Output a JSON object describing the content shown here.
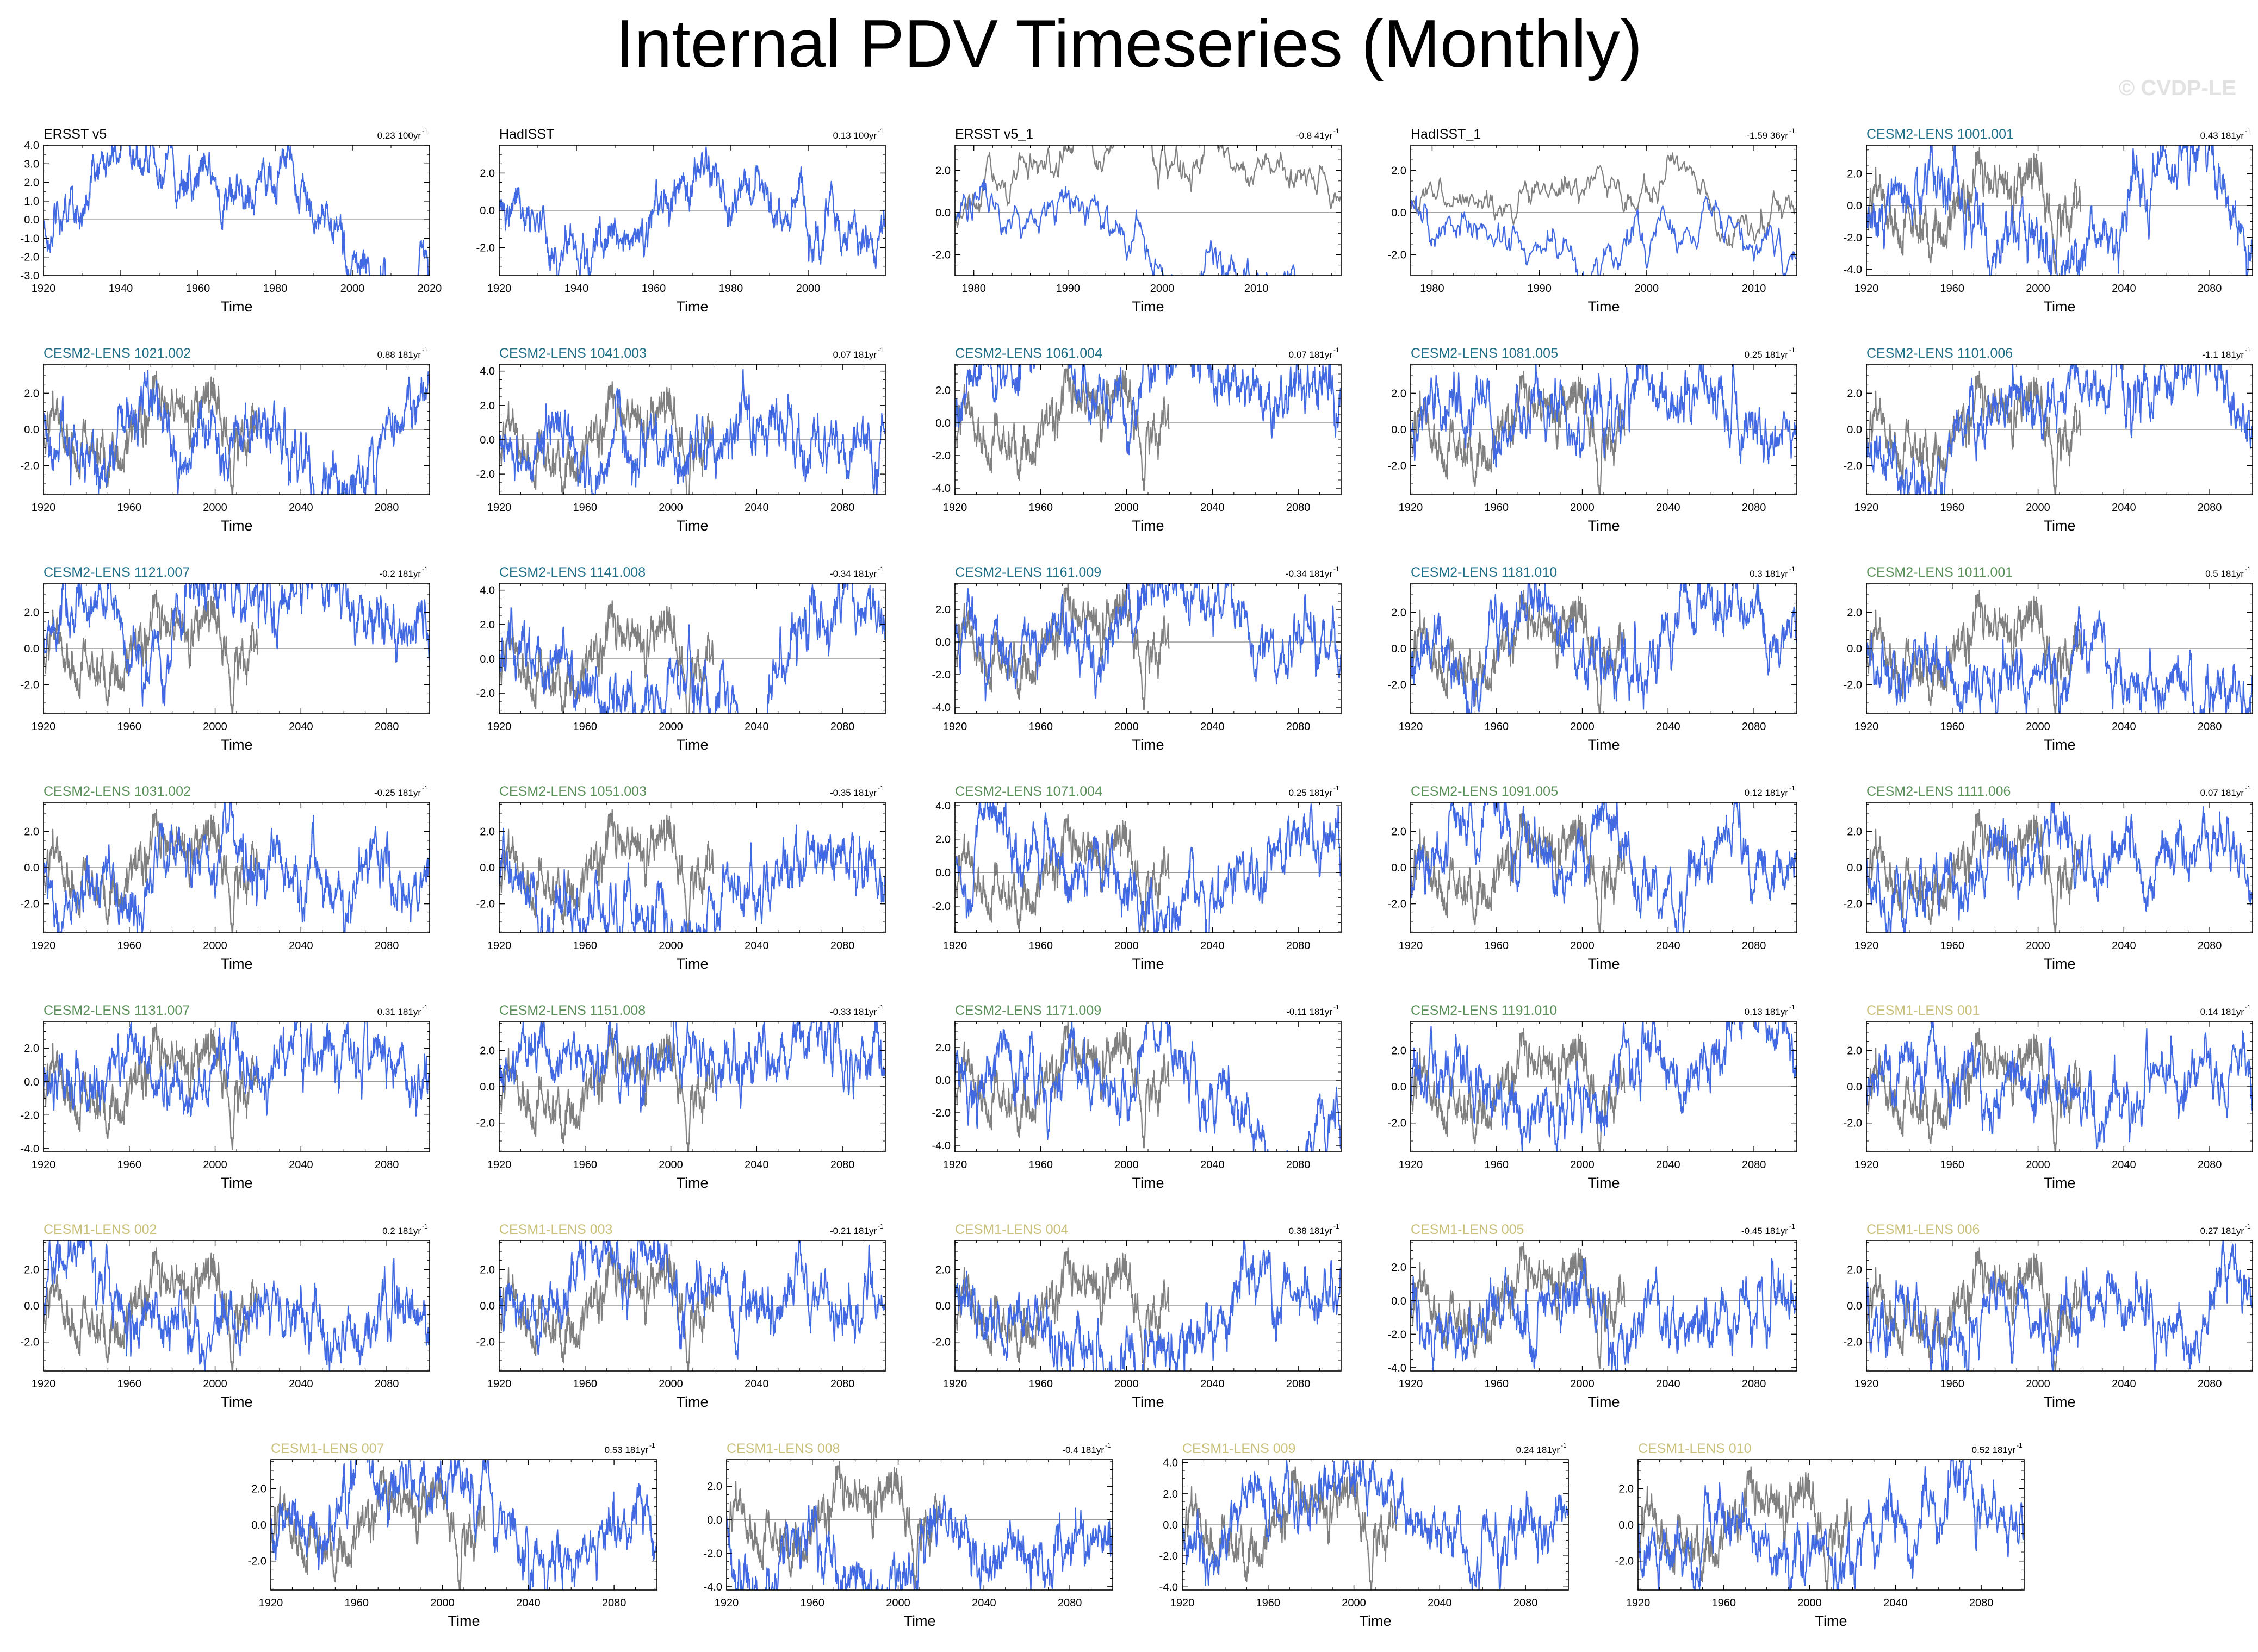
{
  "title": "Internal PDV Timeseries (Monthly)",
  "watermark": "© CVDP-LE",
  "colors": {
    "obs_title": "#000000",
    "cesm2_cmip6_title": "#1f6f88",
    "cesm2_smbb_title": "#5a8f5a",
    "cesm1_title": "#c9c07a",
    "member_line": "#4169e1",
    "obs_overlay_line": "#808080",
    "zero_line": "#999999"
  },
  "chart_data": [
    {
      "type": "line",
      "name": "ERSST v5",
      "trend": "0.23 100yr",
      "group": "obs",
      "xlim": [
        1920,
        2020
      ],
      "xticks": [
        "1920",
        "1940",
        "1960",
        "1980",
        "2000",
        "2020"
      ],
      "ylim": [
        -3.0,
        4.0
      ],
      "yticks": [
        "4.0",
        "3.0",
        "2.0",
        "1.0",
        "0.0",
        "-1.0",
        "-2.0",
        "-3.0"
      ],
      "xlabel": "Time"
    },
    {
      "type": "line",
      "name": "HadISST",
      "trend": "0.13 100yr",
      "group": "obs",
      "xlim": [
        1920,
        2020
      ],
      "xticks": [
        "1920",
        "1940",
        "1960",
        "1980",
        "2000"
      ],
      "ylim": [
        -3.5,
        3.5
      ],
      "yticks": [
        "2.0",
        "0.0",
        "-2.0"
      ],
      "xlabel": "Time"
    },
    {
      "type": "line",
      "name": "ERSST v5_1",
      "trend": "-0.8 41yr",
      "group": "obs",
      "xlim": [
        1978,
        2019
      ],
      "xticks": [
        "1980",
        "1990",
        "2000",
        "2010"
      ],
      "ylim": [
        -3.0,
        3.2
      ],
      "yticks": [
        "2.0",
        "0.0",
        "-2.0"
      ],
      "xlabel": "Time"
    },
    {
      "type": "line",
      "name": "HadISST_1",
      "trend": "-1.59 36yr",
      "group": "obs",
      "xlim": [
        1978,
        2014
      ],
      "xticks": [
        "1980",
        "1990",
        "2000",
        "2010"
      ],
      "ylim": [
        -3.0,
        3.2
      ],
      "yticks": [
        "2.0",
        "0.0",
        "-2.0"
      ],
      "xlabel": "Time"
    },
    {
      "type": "line",
      "name": "CESM2-LENS 1001.001",
      "trend": "0.43 181yr",
      "group": "cesm2_cmip6",
      "xlim": [
        1920,
        2100
      ],
      "xticks": [
        "1920",
        "1960",
        "2000",
        "2040",
        "2080"
      ],
      "ylim": [
        -4.4,
        3.8
      ],
      "yticks": [
        "2.0",
        "0.0",
        "-2.0",
        "-4.0"
      ],
      "xlabel": "Time"
    },
    {
      "type": "line",
      "name": "CESM2-LENS 1021.002",
      "trend": "0.88 181yr",
      "group": "cesm2_cmip6",
      "xlim": [
        1920,
        2100
      ],
      "xticks": [
        "1920",
        "1960",
        "2000",
        "2040",
        "2080"
      ],
      "ylim": [
        -3.6,
        3.6
      ],
      "yticks": [
        "2.0",
        "0.0",
        "-2.0"
      ],
      "xlabel": "Time"
    },
    {
      "type": "line",
      "name": "CESM2-LENS 1041.003",
      "trend": "0.07 181yr",
      "group": "cesm2_cmip6",
      "xlim": [
        1920,
        2100
      ],
      "xticks": [
        "1920",
        "1960",
        "2000",
        "2040",
        "2080"
      ],
      "ylim": [
        -3.2,
        4.4
      ],
      "yticks": [
        "4.0",
        "2.0",
        "0.0",
        "-2.0"
      ],
      "xlabel": "Time"
    },
    {
      "type": "line",
      "name": "CESM2-LENS 1061.004",
      "trend": "0.07 181yr",
      "group": "cesm2_cmip6",
      "xlim": [
        1920,
        2100
      ],
      "xticks": [
        "1920",
        "1960",
        "2000",
        "2040",
        "2080"
      ],
      "ylim": [
        -4.4,
        3.6
      ],
      "yticks": [
        "2.0",
        "0.0",
        "-2.0",
        "-4.0"
      ],
      "xlabel": "Time"
    },
    {
      "type": "line",
      "name": "CESM2-LENS 1081.005",
      "trend": "0.25 181yr",
      "group": "cesm2_cmip6",
      "xlim": [
        1920,
        2100
      ],
      "xticks": [
        "1920",
        "1960",
        "2000",
        "2040",
        "2080"
      ],
      "ylim": [
        -3.6,
        3.6
      ],
      "yticks": [
        "2.0",
        "0.0",
        "-2.0"
      ],
      "xlabel": "Time"
    },
    {
      "type": "line",
      "name": "CESM2-LENS 1101.006",
      "trend": "-1.1 181yr",
      "group": "cesm2_cmip6",
      "xlim": [
        1920,
        2100
      ],
      "xticks": [
        "1920",
        "1960",
        "2000",
        "2040",
        "2080"
      ],
      "ylim": [
        -3.6,
        3.6
      ],
      "yticks": [
        "2.0",
        "0.0",
        "-2.0"
      ],
      "xlabel": "Time"
    },
    {
      "type": "line",
      "name": "CESM2-LENS 1121.007",
      "trend": "-0.2 181yr",
      "group": "cesm2_cmip6",
      "xlim": [
        1920,
        2100
      ],
      "xticks": [
        "1920",
        "1960",
        "2000",
        "2040",
        "2080"
      ],
      "ylim": [
        -3.6,
        3.6
      ],
      "yticks": [
        "2.0",
        "0.0",
        "-2.0"
      ],
      "xlabel": "Time"
    },
    {
      "type": "line",
      "name": "CESM2-LENS 1141.008",
      "trend": "-0.34 181yr",
      "group": "cesm2_cmip6",
      "xlim": [
        1920,
        2100
      ],
      "xticks": [
        "1920",
        "1960",
        "2000",
        "2040",
        "2080"
      ],
      "ylim": [
        -3.2,
        4.4
      ],
      "yticks": [
        "4.0",
        "2.0",
        "0.0",
        "-2.0"
      ],
      "xlabel": "Time"
    },
    {
      "type": "line",
      "name": "CESM2-LENS 1161.009",
      "trend": "-0.34 181yr",
      "group": "cesm2_cmip6",
      "xlim": [
        1920,
        2100
      ],
      "xticks": [
        "1920",
        "1960",
        "2000",
        "2040",
        "2080"
      ],
      "ylim": [
        -4.4,
        3.6
      ],
      "yticks": [
        "2.0",
        "0.0",
        "-2.0",
        "-4.0"
      ],
      "xlabel": "Time"
    },
    {
      "type": "line",
      "name": "CESM2-LENS 1181.010",
      "trend": "0.3 181yr",
      "group": "cesm2_cmip6",
      "xlim": [
        1920,
        2100
      ],
      "xticks": [
        "1920",
        "1960",
        "2000",
        "2040",
        "2080"
      ],
      "ylim": [
        -3.6,
        3.6
      ],
      "yticks": [
        "2.0",
        "0.0",
        "-2.0"
      ],
      "xlabel": "Time"
    },
    {
      "type": "line",
      "name": "CESM2-LENS 1011.001",
      "trend": "0.5 181yr",
      "group": "cesm2_smbb",
      "xlim": [
        1920,
        2100
      ],
      "xticks": [
        "1920",
        "1960",
        "2000",
        "2040",
        "2080"
      ],
      "ylim": [
        -3.6,
        3.6
      ],
      "yticks": [
        "2.0",
        "0.0",
        "-2.0"
      ],
      "xlabel": "Time"
    },
    {
      "type": "line",
      "name": "CESM2-LENS 1031.002",
      "trend": "-0.25 181yr",
      "group": "cesm2_smbb",
      "xlim": [
        1920,
        2100
      ],
      "xticks": [
        "1920",
        "1960",
        "2000",
        "2040",
        "2080"
      ],
      "ylim": [
        -3.6,
        3.6
      ],
      "yticks": [
        "2.0",
        "0.0",
        "-2.0"
      ],
      "xlabel": "Time"
    },
    {
      "type": "line",
      "name": "CESM2-LENS 1051.003",
      "trend": "-0.35 181yr",
      "group": "cesm2_smbb",
      "xlim": [
        1920,
        2100
      ],
      "xticks": [
        "1920",
        "1960",
        "2000",
        "2040",
        "2080"
      ],
      "ylim": [
        -3.6,
        3.6
      ],
      "yticks": [
        "2.0",
        "0.0",
        "-2.0"
      ],
      "xlabel": "Time"
    },
    {
      "type": "line",
      "name": "CESM2-LENS 1071.004",
      "trend": "0.25 181yr",
      "group": "cesm2_smbb",
      "xlim": [
        1920,
        2100
      ],
      "xticks": [
        "1920",
        "1960",
        "2000",
        "2040",
        "2080"
      ],
      "ylim": [
        -3.6,
        4.2
      ],
      "yticks": [
        "4.0",
        "2.0",
        "0.0",
        "-2.0"
      ],
      "xlabel": "Time"
    },
    {
      "type": "line",
      "name": "CESM2-LENS 1091.005",
      "trend": "0.12 181yr",
      "group": "cesm2_smbb",
      "xlim": [
        1920,
        2100
      ],
      "xticks": [
        "1920",
        "1960",
        "2000",
        "2040",
        "2080"
      ],
      "ylim": [
        -3.6,
        3.6
      ],
      "yticks": [
        "2.0",
        "0.0",
        "-2.0"
      ],
      "xlabel": "Time"
    },
    {
      "type": "line",
      "name": "CESM2-LENS 1111.006",
      "trend": "0.07 181yr",
      "group": "cesm2_smbb",
      "xlim": [
        1920,
        2100
      ],
      "xticks": [
        "1920",
        "1960",
        "2000",
        "2040",
        "2080"
      ],
      "ylim": [
        -3.6,
        3.6
      ],
      "yticks": [
        "2.0",
        "0.0",
        "-2.0"
      ],
      "xlabel": "Time"
    },
    {
      "type": "line",
      "name": "CESM2-LENS 1131.007",
      "trend": "0.31 181yr",
      "group": "cesm2_smbb",
      "xlim": [
        1920,
        2100
      ],
      "xticks": [
        "1920",
        "1960",
        "2000",
        "2040",
        "2080"
      ],
      "ylim": [
        -4.2,
        3.6
      ],
      "yticks": [
        "2.0",
        "0.0",
        "-2.0",
        "-4.0"
      ],
      "xlabel": "Time"
    },
    {
      "type": "line",
      "name": "CESM2-LENS 1151.008",
      "trend": "-0.33 181yr",
      "group": "cesm2_smbb",
      "xlim": [
        1920,
        2100
      ],
      "xticks": [
        "1920",
        "1960",
        "2000",
        "2040",
        "2080"
      ],
      "ylim": [
        -3.6,
        3.6
      ],
      "yticks": [
        "2.0",
        "0.0",
        "-2.0"
      ],
      "xlabel": "Time"
    },
    {
      "type": "line",
      "name": "CESM2-LENS 1171.009",
      "trend": "-0.11 181yr",
      "group": "cesm2_smbb",
      "xlim": [
        1920,
        2100
      ],
      "xticks": [
        "1920",
        "1960",
        "2000",
        "2040",
        "2080"
      ],
      "ylim": [
        -4.4,
        3.6
      ],
      "yticks": [
        "2.0",
        "0.0",
        "-2.0",
        "-4.0"
      ],
      "xlabel": "Time"
    },
    {
      "type": "line",
      "name": "CESM2-LENS 1191.010",
      "trend": "0.13 181yr",
      "group": "cesm2_smbb",
      "xlim": [
        1920,
        2100
      ],
      "xticks": [
        "1920",
        "1960",
        "2000",
        "2040",
        "2080"
      ],
      "ylim": [
        -3.6,
        3.6
      ],
      "yticks": [
        "2.0",
        "0.0",
        "-2.0"
      ],
      "xlabel": "Time"
    },
    {
      "type": "line",
      "name": "CESM1-LENS 001",
      "trend": "0.14 181yr",
      "group": "cesm1",
      "xlim": [
        1920,
        2100
      ],
      "xticks": [
        "1920",
        "1960",
        "2000",
        "2040",
        "2080"
      ],
      "ylim": [
        -3.6,
        3.6
      ],
      "yticks": [
        "2.0",
        "0.0",
        "-2.0"
      ],
      "xlabel": "Time"
    },
    {
      "type": "line",
      "name": "CESM1-LENS 002",
      "trend": "0.2 181yr",
      "group": "cesm1",
      "xlim": [
        1920,
        2100
      ],
      "xticks": [
        "1920",
        "1960",
        "2000",
        "2040",
        "2080"
      ],
      "ylim": [
        -3.6,
        3.6
      ],
      "yticks": [
        "2.0",
        "0.0",
        "-2.0"
      ],
      "xlabel": "Time"
    },
    {
      "type": "line",
      "name": "CESM1-LENS 003",
      "trend": "-0.21 181yr",
      "group": "cesm1",
      "xlim": [
        1920,
        2100
      ],
      "xticks": [
        "1920",
        "1960",
        "2000",
        "2040",
        "2080"
      ],
      "ylim": [
        -3.6,
        3.6
      ],
      "yticks": [
        "2.0",
        "0.0",
        "-2.0"
      ],
      "xlabel": "Time"
    },
    {
      "type": "line",
      "name": "CESM1-LENS 004",
      "trend": "0.38 181yr",
      "group": "cesm1",
      "xlim": [
        1920,
        2100
      ],
      "xticks": [
        "1920",
        "1960",
        "2000",
        "2040",
        "2080"
      ],
      "ylim": [
        -3.6,
        3.6
      ],
      "yticks": [
        "2.0",
        "0.0",
        "-2.0"
      ],
      "xlabel": "Time"
    },
    {
      "type": "line",
      "name": "CESM1-LENS 005",
      "trend": "-0.45 181yr",
      "group": "cesm1",
      "xlim": [
        1920,
        2100
      ],
      "xticks": [
        "1920",
        "1960",
        "2000",
        "2040",
        "2080"
      ],
      "ylim": [
        -4.2,
        3.6
      ],
      "yticks": [
        "2.0",
        "0.0",
        "-2.0",
        "-4.0"
      ],
      "xlabel": "Time"
    },
    {
      "type": "line",
      "name": "CESM1-LENS 006",
      "trend": "0.27 181yr",
      "group": "cesm1",
      "xlim": [
        1920,
        2100
      ],
      "xticks": [
        "1920",
        "1960",
        "2000",
        "2040",
        "2080"
      ],
      "ylim": [
        -3.6,
        3.6
      ],
      "yticks": [
        "2.0",
        "0.0",
        "-2.0"
      ],
      "xlabel": "Time"
    },
    {
      "type": "line",
      "name": "CESM1-LENS 007",
      "trend": "0.53 181yr",
      "group": "cesm1",
      "xlim": [
        1920,
        2100
      ],
      "xticks": [
        "1920",
        "1960",
        "2000",
        "2040",
        "2080"
      ],
      "ylim": [
        -3.6,
        3.6
      ],
      "yticks": [
        "2.0",
        "0.0",
        "-2.0"
      ],
      "xlabel": "Time"
    },
    {
      "type": "line",
      "name": "CESM1-LENS 008",
      "trend": "-0.4 181yr",
      "group": "cesm1",
      "xlim": [
        1920,
        2100
      ],
      "xticks": [
        "1920",
        "1960",
        "2000",
        "2040",
        "2080"
      ],
      "ylim": [
        -4.2,
        3.6
      ],
      "yticks": [
        "2.0",
        "0.0",
        "-2.0",
        "-4.0"
      ],
      "xlabel": "Time"
    },
    {
      "type": "line",
      "name": "CESM1-LENS 009",
      "trend": "0.24 181yr",
      "group": "cesm1",
      "xlim": [
        1920,
        2100
      ],
      "xticks": [
        "1920",
        "1960",
        "2000",
        "2040",
        "2080"
      ],
      "ylim": [
        -4.2,
        4.2
      ],
      "yticks": [
        "4.0",
        "2.0",
        "0.0",
        "-2.0",
        "-4.0"
      ],
      "xlabel": "Time"
    },
    {
      "type": "line",
      "name": "CESM1-LENS 010",
      "trend": "0.52 181yr",
      "group": "cesm1",
      "xlim": [
        1920,
        2100
      ],
      "xticks": [
        "1920",
        "1960",
        "2000",
        "2040",
        "2080"
      ],
      "ylim": [
        -3.6,
        3.6
      ],
      "yticks": [
        "2.0",
        "0.0",
        "-2.0"
      ],
      "xlabel": "Time"
    }
  ]
}
